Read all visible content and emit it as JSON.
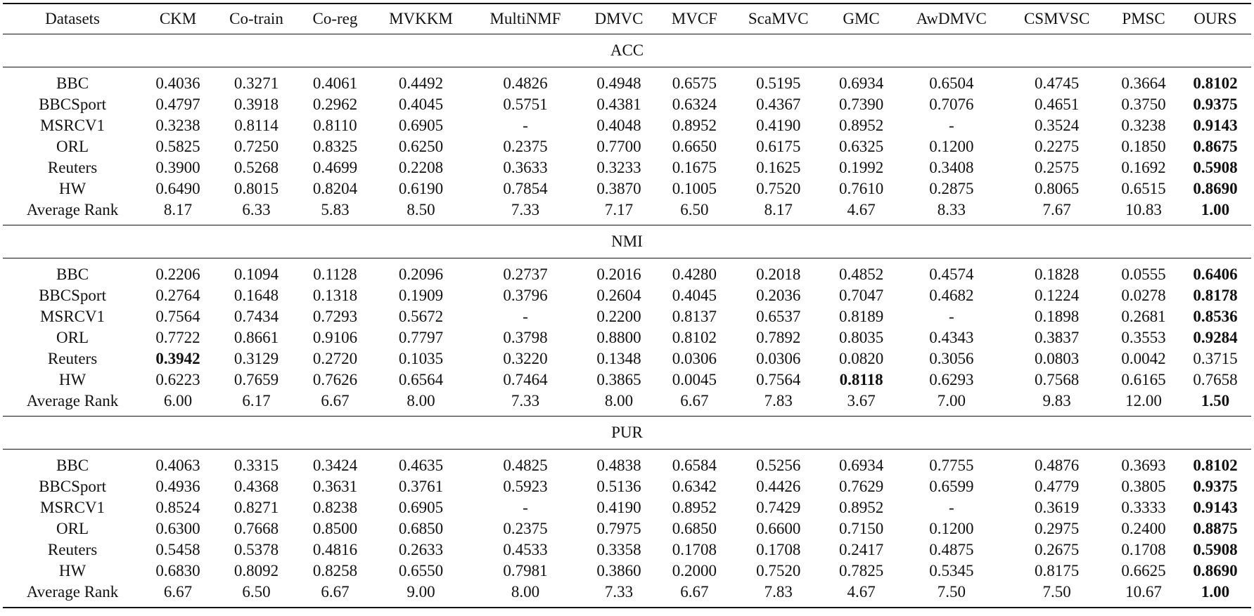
{
  "table": {
    "header": [
      "Datasets",
      "CKM",
      "Co-train",
      "Co-reg",
      "MVKKM",
      "MultiNMF",
      "DMVC",
      "MVCF",
      "ScaMVC",
      "GMC",
      "AwDMVC",
      "CSMVSC",
      "PMSC",
      "OURS"
    ],
    "sections": [
      {
        "title": "ACC",
        "bold": [
          [
            0,
            13
          ],
          [
            1,
            13
          ],
          [
            2,
            13
          ],
          [
            3,
            13
          ],
          [
            4,
            13
          ],
          [
            5,
            13
          ],
          [
            6,
            13
          ]
        ],
        "rows": [
          [
            "BBC",
            "0.4036",
            "0.3271",
            "0.4061",
            "0.4492",
            "0.4826",
            "0.4948",
            "0.6575",
            "0.5195",
            "0.6934",
            "0.6504",
            "0.4745",
            "0.3664",
            "0.8102"
          ],
          [
            "BBCSport",
            "0.4797",
            "0.3918",
            "0.2962",
            "0.4045",
            "0.5751",
            "0.4381",
            "0.6324",
            "0.4367",
            "0.7390",
            "0.7076",
            "0.4651",
            "0.3750",
            "0.9375"
          ],
          [
            "MSRCV1",
            "0.3238",
            "0.8114",
            "0.8110",
            "0.6905",
            "-",
            "0.4048",
            "0.8952",
            "0.4190",
            "0.8952",
            "-",
            "0.3524",
            "0.3238",
            "0.9143"
          ],
          [
            "ORL",
            "0.5825",
            "0.7250",
            "0.8325",
            "0.6250",
            "0.2375",
            "0.7700",
            "0.6650",
            "0.6175",
            "0.6325",
            "0.1200",
            "0.2275",
            "0.1850",
            "0.8675"
          ],
          [
            "Reuters",
            "0.3900",
            "0.5268",
            "0.4699",
            "0.2208",
            "0.3633",
            "0.3233",
            "0.1675",
            "0.1625",
            "0.1992",
            "0.3408",
            "0.2575",
            "0.1692",
            "0.5908"
          ],
          [
            "HW",
            "0.6490",
            "0.8015",
            "0.8204",
            "0.6190",
            "0.7854",
            "0.3870",
            "0.1005",
            "0.7520",
            "0.7610",
            "0.2875",
            "0.8065",
            "0.6515",
            "0.8690"
          ],
          [
            "Average Rank",
            "8.17",
            "6.33",
            "5.83",
            "8.50",
            "7.33",
            "7.17",
            "6.50",
            "8.17",
            "4.67",
            "8.33",
            "7.67",
            "10.83",
            "1.00"
          ]
        ]
      },
      {
        "title": "NMI",
        "bold": [
          [
            0,
            13
          ],
          [
            1,
            13
          ],
          [
            2,
            13
          ],
          [
            3,
            13
          ],
          [
            4,
            1
          ],
          [
            5,
            9
          ],
          [
            6,
            13
          ]
        ],
        "rows": [
          [
            "BBC",
            "0.2206",
            "0.1094",
            "0.1128",
            "0.2096",
            "0.2737",
            "0.2016",
            "0.4280",
            "0.2018",
            "0.4852",
            "0.4574",
            "0.1828",
            "0.0555",
            "0.6406"
          ],
          [
            "BBCSport",
            "0.2764",
            "0.1648",
            "0.1318",
            "0.1909",
            "0.3796",
            "0.2604",
            "0.4045",
            "0.2036",
            "0.7047",
            "0.4682",
            "0.1224",
            "0.0278",
            "0.8178"
          ],
          [
            "MSRCV1",
            "0.7564",
            "0.7434",
            "0.7293",
            "0.5672",
            "-",
            "0.2200",
            "0.8137",
            "0.6537",
            "0.8189",
            "-",
            "0.1898",
            "0.2681",
            "0.8536"
          ],
          [
            "ORL",
            "0.7722",
            "0.8661",
            "0.9106",
            "0.7797",
            "0.3798",
            "0.8800",
            "0.8102",
            "0.7892",
            "0.8035",
            "0.4343",
            "0.3837",
            "0.3553",
            "0.9284"
          ],
          [
            "Reuters",
            "0.3942",
            "0.3129",
            "0.2720",
            "0.1035",
            "0.3220",
            "0.1348",
            "0.0306",
            "0.0306",
            "0.0820",
            "0.3056",
            "0.0803",
            "0.0042",
            "0.3715"
          ],
          [
            "HW",
            "0.6223",
            "0.7659",
            "0.7626",
            "0.6564",
            "0.7464",
            "0.3865",
            "0.0045",
            "0.7564",
            "0.8118",
            "0.6293",
            "0.7568",
            "0.6165",
            "0.7658"
          ],
          [
            "Average Rank",
            "6.00",
            "6.17",
            "6.67",
            "8.00",
            "7.33",
            "8.00",
            "6.67",
            "7.83",
            "3.67",
            "7.00",
            "9.83",
            "12.00",
            "1.50"
          ]
        ]
      },
      {
        "title": "PUR",
        "bold": [
          [
            0,
            13
          ],
          [
            1,
            13
          ],
          [
            2,
            13
          ],
          [
            3,
            13
          ],
          [
            4,
            13
          ],
          [
            5,
            13
          ],
          [
            6,
            13
          ]
        ],
        "rows": [
          [
            "BBC",
            "0.4063",
            "0.3315",
            "0.3424",
            "0.4635",
            "0.4825",
            "0.4838",
            "0.6584",
            "0.5256",
            "0.6934",
            "0.7755",
            "0.4876",
            "0.3693",
            "0.8102"
          ],
          [
            "BBCSport",
            "0.4936",
            "0.4368",
            "0.3631",
            "0.3761",
            "0.5923",
            "0.5136",
            "0.6342",
            "0.4426",
            "0.7629",
            "0.6599",
            "0.4779",
            "0.3805",
            "0.9375"
          ],
          [
            "MSRCV1",
            "0.8524",
            "0.8271",
            "0.8238",
            "0.6905",
            "-",
            "0.4190",
            "0.8952",
            "0.7429",
            "0.8952",
            "-",
            "0.3619",
            "0.3333",
            "0.9143"
          ],
          [
            "ORL",
            "0.6300",
            "0.7668",
            "0.8500",
            "0.6850",
            "0.2375",
            "0.7975",
            "0.6850",
            "0.6600",
            "0.7150",
            "0.1200",
            "0.2975",
            "0.2400",
            "0.8875"
          ],
          [
            "Reuters",
            "0.5458",
            "0.5378",
            "0.4816",
            "0.2633",
            "0.4533",
            "0.3358",
            "0.1708",
            "0.1708",
            "0.2417",
            "0.4875",
            "0.2675",
            "0.1708",
            "0.5908"
          ],
          [
            "HW",
            "0.6830",
            "0.8092",
            "0.8258",
            "0.6550",
            "0.7981",
            "0.3860",
            "0.2000",
            "0.7520",
            "0.7825",
            "0.5345",
            "0.8175",
            "0.6625",
            "0.8690"
          ],
          [
            "Average Rank",
            "6.67",
            "6.50",
            "6.67",
            "9.00",
            "8.00",
            "7.33",
            "6.67",
            "7.83",
            "4.67",
            "7.50",
            "7.50",
            "10.67",
            "1.00"
          ]
        ]
      }
    ]
  }
}
